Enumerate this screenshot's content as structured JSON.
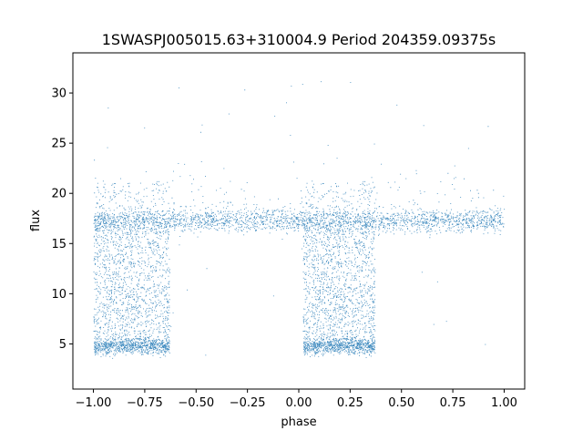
{
  "chart_data": {
    "type": "scatter",
    "title": "1SWASPJ005015.63+310004.9 Period 204359.09375s",
    "xlabel": "phase",
    "ylabel": "flux",
    "xlim": [
      -1.1,
      1.1
    ],
    "ylim": [
      0.5,
      34
    ],
    "xticks": [
      -1.0,
      -0.75,
      -0.5,
      -0.25,
      0.0,
      0.25,
      0.5,
      0.75,
      1.0
    ],
    "xtick_labels": [
      "−1.00",
      "−0.75",
      "−0.50",
      "−0.25",
      "0.00",
      "0.25",
      "0.50",
      "0.75",
      "1.00"
    ],
    "yticks": [
      5,
      10,
      15,
      20,
      25,
      30
    ],
    "ytick_labels": [
      "5",
      "10",
      "15",
      "20",
      "25",
      "30"
    ],
    "grid": false,
    "legend": "none",
    "marker_color": "#1f77b4",
    "series": [
      {
        "description_values": {
          "baseline_flux": 17.3,
          "eclipse_min_flux": 4.8,
          "eclipse_phase_ranges": [
            [
              -1.0,
              -0.63
            ],
            [
              0.02,
              0.37
            ]
          ],
          "phase_range": [
            -1.0,
            1.0
          ]
        }
      }
    ]
  }
}
